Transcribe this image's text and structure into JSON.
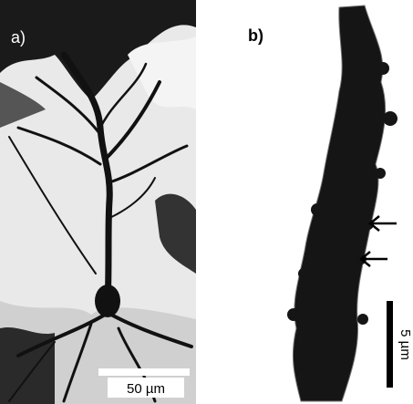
{
  "panels": [
    {
      "label": "a)",
      "scale_bar": "50 µm"
    },
    {
      "label": "b)",
      "scale_bar": "5 µm"
    }
  ]
}
